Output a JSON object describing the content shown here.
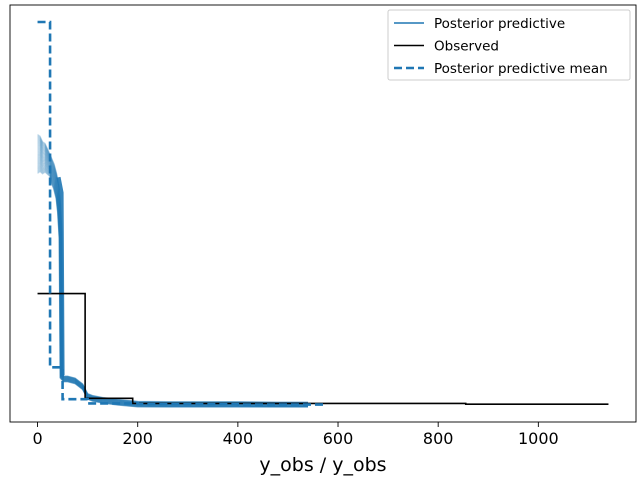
{
  "chart_data": {
    "type": "line",
    "title": "",
    "xlabel": "y_obs / y_obs",
    "ylabel": "",
    "xlim": [
      -55,
      1195
    ],
    "ylim": [
      0,
      1
    ],
    "x_ticks": [
      0,
      200,
      400,
      600,
      800,
      1000
    ],
    "x_tick_labels": [
      "0",
      "200",
      "400",
      "600",
      "800",
      "1000"
    ],
    "y_ticks_shown": false,
    "legend_position": "top-right",
    "legend": [
      {
        "label": "Posterior predictive",
        "style": "solid",
        "color": "#1f77b4"
      },
      {
        "label": "Observed",
        "style": "solid",
        "color": "#000000"
      },
      {
        "label": "Posterior predictive mean",
        "style": "dashed",
        "color": "#1f77b4"
      }
    ],
    "series": [
      {
        "name": "Posterior predictive",
        "color": "#1f77b4",
        "kind": "ensemble",
        "num_draws": 40,
        "x": [
          0,
          5,
          10,
          15,
          20,
          25,
          30,
          35,
          40,
          43,
          46,
          48,
          52,
          60,
          75,
          90,
          100,
          110,
          130,
          160,
          200,
          260,
          320,
          400,
          480,
          540
        ],
        "y": [
          0.66,
          0.66,
          0.65,
          0.65,
          0.64,
          0.63,
          0.61,
          0.59,
          0.56,
          0.52,
          0.45,
          0.09,
          0.08,
          0.08,
          0.075,
          0.06,
          0.035,
          0.03,
          0.025,
          0.02,
          0.015,
          0.014,
          0.014,
          0.014,
          0.013,
          0.013
        ],
        "y_spread": 0.05
      },
      {
        "name": "Observed",
        "color": "#000000",
        "kind": "step",
        "x": [
          0,
          95,
          95,
          190,
          190,
          855,
          855,
          1140
        ],
        "y": [
          0.3,
          0.3,
          0.03,
          0.03,
          0.017,
          0.017,
          0.015,
          0.015
        ]
      },
      {
        "name": "Posterior predictive mean",
        "color": "#1f77b4",
        "kind": "dashed-step",
        "x": [
          0,
          25,
          25,
          50,
          50,
          100,
          100,
          200,
          200,
          300,
          300,
          400,
          400,
          500,
          500,
          575
        ],
        "y": [
          1.0,
          1.0,
          0.11,
          0.11,
          0.028,
          0.028,
          0.017,
          0.017,
          0.015,
          0.015,
          0.015,
          0.015,
          0.014,
          0.014,
          0.014,
          0.014
        ]
      }
    ]
  }
}
